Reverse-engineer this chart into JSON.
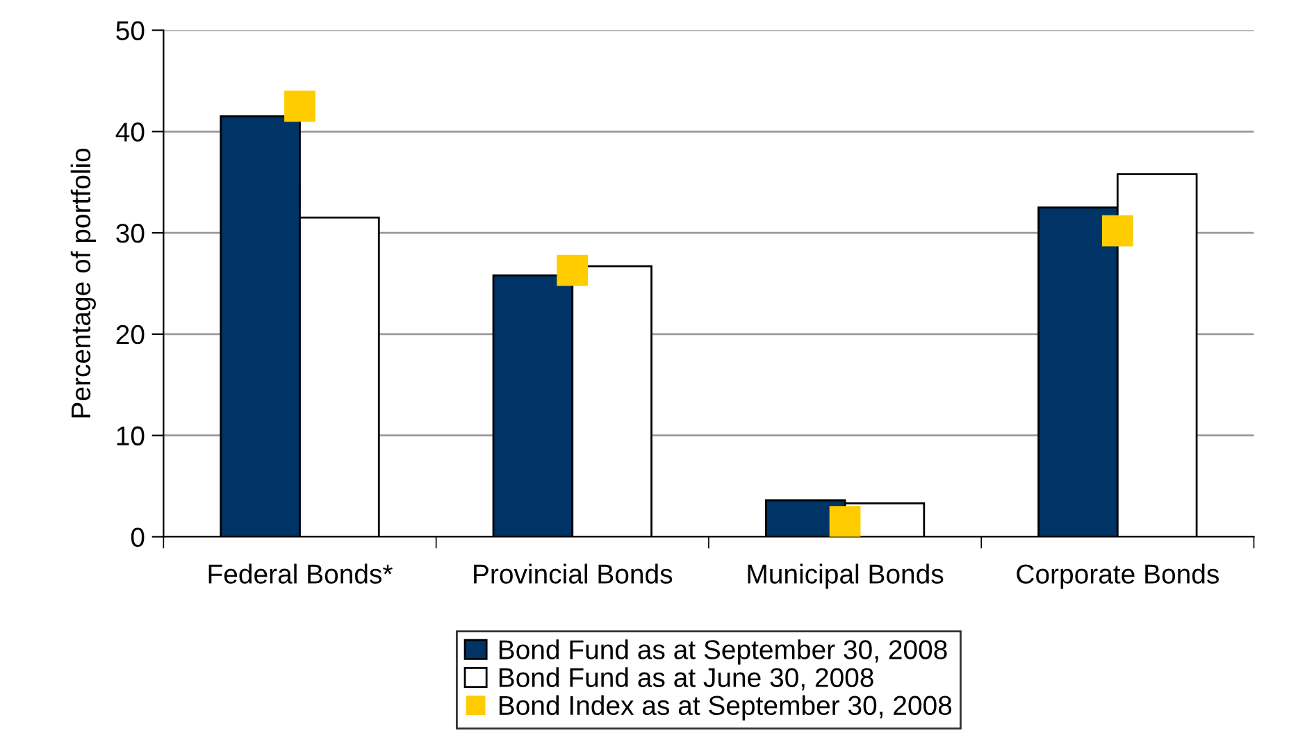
{
  "chart_data": {
    "type": "bar",
    "ylabel": "Percentage of portfolio",
    "categories": [
      "Federal Bonds*",
      "Provincial Bonds",
      "Municipal Bonds",
      "Corporate Bonds"
    ],
    "series": [
      {
        "name": "Bond Fund as at September 30, 2008",
        "color": "#003366",
        "values": [
          41.5,
          25.8,
          3.6,
          32.5
        ]
      },
      {
        "name": "Bond Fund as at June 30, 2008",
        "color": "#ffffff",
        "values": [
          31.5,
          26.7,
          3.3,
          35.8
        ]
      },
      {
        "name": "Bond Index as at September 30, 2008",
        "color": "#ffcc00",
        "type": "scatter",
        "marker": "square",
        "x": [
          "Federal Bonds*",
          "Provincial Bonds",
          "Municipal Bonds",
          "Corporate Bonds"
        ],
        "values": [
          42.5,
          26.3,
          1.5,
          30.2
        ]
      }
    ],
    "ylim": [
      0,
      50
    ],
    "yticks": [
      0,
      10,
      20,
      30,
      40,
      50
    ],
    "grid": "y",
    "legend": "bottom"
  }
}
